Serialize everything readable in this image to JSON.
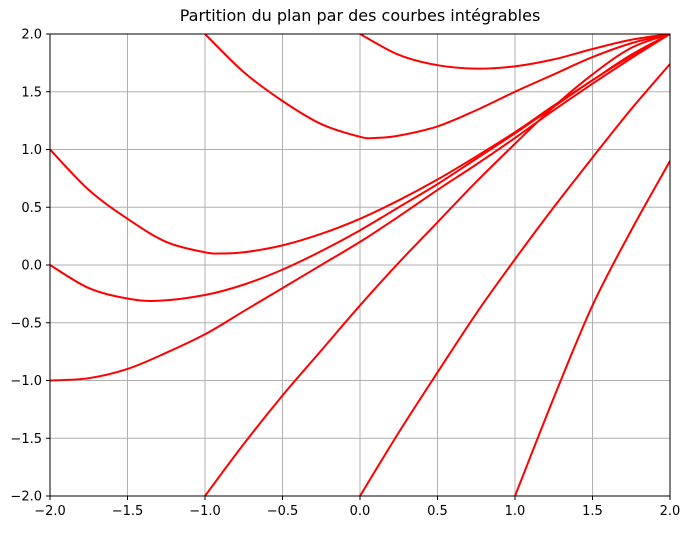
{
  "chart_data": {
    "type": "line",
    "title": "Partition du plan par des courbes intégrables",
    "xlabel": "",
    "ylabel": "",
    "xlim": [
      -2.0,
      2.0
    ],
    "ylim": [
      -2.0,
      2.0
    ],
    "grid": true,
    "color": "#ff0000",
    "x_ticks": [
      -2.0,
      -1.5,
      -1.0,
      -0.5,
      0.0,
      0.5,
      1.0,
      1.5,
      2.0
    ],
    "y_ticks": [
      -2.0,
      -1.5,
      -1.0,
      -0.5,
      0.0,
      0.5,
      1.0,
      1.5,
      2.0
    ],
    "x_tick_labels": [
      "−2.0",
      "−1.5",
      "−1.0",
      "−0.5",
      "0.0",
      "0.5",
      "1.0",
      "1.5",
      "2.0"
    ],
    "y_tick_labels": [
      "−2.0",
      "−1.5",
      "−1.0",
      "−0.5",
      "0.0",
      "0.5",
      "1.0",
      "1.5",
      "2.0"
    ],
    "series": [
      {
        "x": [
          0.0,
          0.25,
          0.5,
          0.75,
          1.0,
          1.25,
          1.5,
          1.75,
          2.0
        ],
        "y": [
          2.0,
          1.82,
          1.73,
          1.7,
          1.72,
          1.78,
          1.87,
          1.95,
          2.0
        ]
      },
      {
        "x": [
          -1.0,
          -0.75,
          -0.5,
          -0.25,
          0.0,
          0.1,
          0.25,
          0.5,
          0.75,
          1.0,
          1.25,
          1.5,
          1.75,
          2.0
        ],
        "y": [
          2.0,
          1.67,
          1.42,
          1.22,
          1.11,
          1.1,
          1.12,
          1.2,
          1.34,
          1.5,
          1.65,
          1.8,
          1.92,
          2.0
        ]
      },
      {
        "x": [
          -2.0,
          -1.75,
          -1.5,
          -1.25,
          -1.0,
          -0.9,
          -0.75,
          -0.5,
          -0.25,
          0.0,
          0.25,
          0.5,
          0.75,
          1.0,
          1.25,
          1.5,
          1.75,
          2.0
        ],
        "y": [
          1.0,
          0.65,
          0.4,
          0.2,
          0.11,
          0.1,
          0.11,
          0.17,
          0.27,
          0.4,
          0.56,
          0.74,
          0.94,
          1.15,
          1.38,
          1.6,
          1.82,
          2.0
        ]
      },
      {
        "x": [
          -2.0,
          -1.75,
          -1.5,
          -1.3,
          -1.0,
          -0.75,
          -0.5,
          -0.25,
          0.0,
          0.25,
          0.5,
          0.75,
          1.0,
          1.25,
          1.5,
          1.75,
          2.0
        ],
        "y": [
          0.0,
          -0.2,
          -0.29,
          -0.31,
          -0.26,
          -0.17,
          -0.04,
          0.12,
          0.3,
          0.5,
          0.7,
          0.92,
          1.14,
          1.37,
          1.6,
          1.81,
          2.0
        ]
      },
      {
        "x": [
          -2.0,
          -1.75,
          -1.5,
          -1.25,
          -1.0,
          -0.75,
          -0.5,
          -0.25,
          0.0,
          0.25,
          0.5,
          0.75,
          1.0,
          1.25,
          1.5,
          1.75,
          2.0
        ],
        "y": [
          -1.0,
          -0.98,
          -0.9,
          -0.76,
          -0.6,
          -0.4,
          -0.2,
          0.0,
          0.2,
          0.42,
          0.65,
          0.87,
          1.1,
          1.34,
          1.57,
          1.79,
          2.0
        ]
      },
      {
        "x": [
          -1.0,
          -0.75,
          -0.5,
          -0.25,
          0.0,
          0.25,
          0.5,
          0.75,
          1.0,
          1.25,
          1.5,
          1.75,
          2.0
        ],
        "y": [
          -2.0,
          -1.55,
          -1.13,
          -0.74,
          -0.35,
          0.02,
          0.37,
          0.72,
          1.05,
          1.37,
          1.65,
          1.88,
          2.0
        ]
      },
      {
        "x": [
          0.0,
          0.25,
          0.5,
          0.75,
          1.0,
          1.25,
          1.5,
          1.75,
          2.0
        ],
        "y": [
          -2.0,
          -1.45,
          -0.93,
          -0.42,
          0.05,
          0.5,
          0.93,
          1.35,
          1.74
        ]
      },
      {
        "x": [
          1.0,
          1.25,
          1.5,
          1.75,
          2.0
        ],
        "y": [
          -2.0,
          -1.15,
          -0.35,
          0.3,
          0.9
        ]
      }
    ]
  }
}
